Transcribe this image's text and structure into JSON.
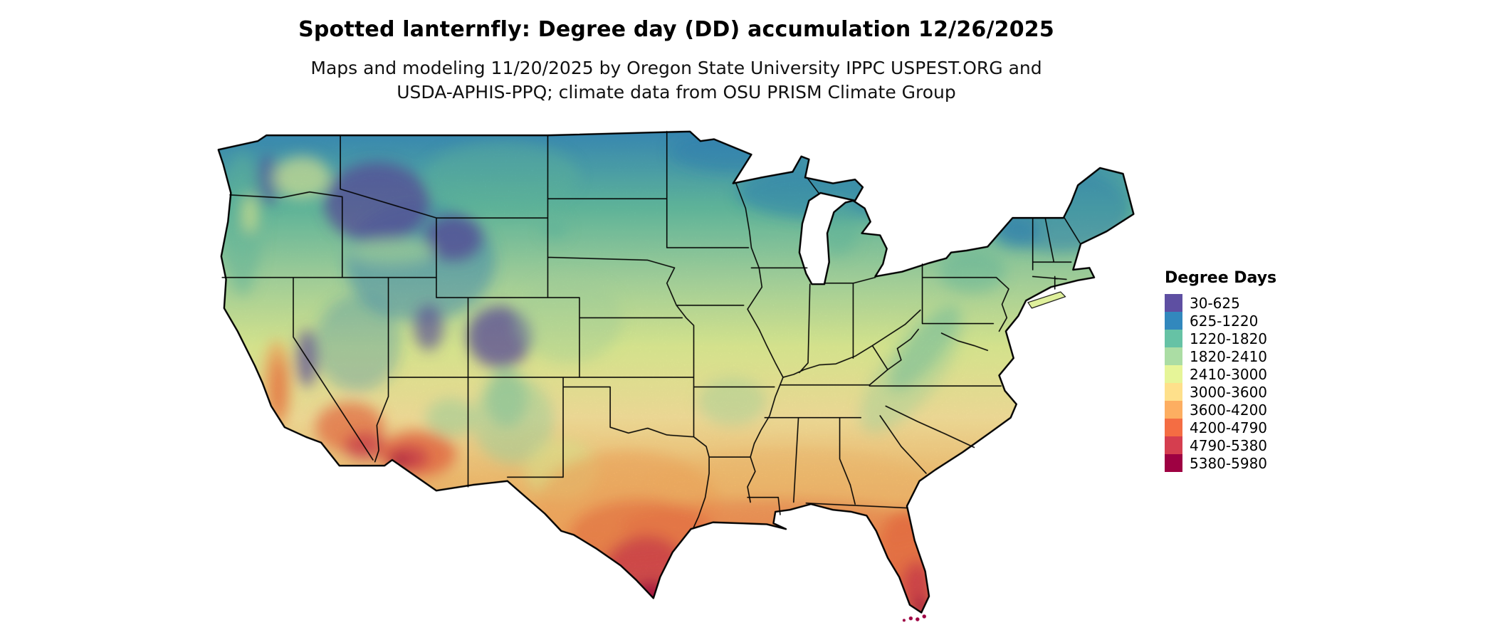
{
  "header": {
    "title": "Spotted lanternfly: Degree day (DD) accumulation 12/26/2025",
    "subtitle": {
      "lines": [
        "Maps and modeling 11/20/2025 by Oregon State University IPPC USPEST.ORG and",
        "USDA-APHIS-PPQ; climate data from OSU PRISM Climate Group"
      ]
    }
  },
  "map": {
    "name": "Conterminous United States degree-day choropleth map",
    "style": "raster heat map with state boundaries"
  },
  "legend": {
    "title": "Degree Days",
    "items": [
      {
        "label": "30-625",
        "color": "#5e4fa2"
      },
      {
        "label": "625-1220",
        "color": "#3288bd"
      },
      {
        "label": "1220-1820",
        "color": "#66c2a5"
      },
      {
        "label": "1820-2410",
        "color": "#abdda4"
      },
      {
        "label": "2410-3000",
        "color": "#e6f598"
      },
      {
        "label": "3000-3600",
        "color": "#fee08b"
      },
      {
        "label": "3600-4200",
        "color": "#fdae61"
      },
      {
        "label": "4200-4790",
        "color": "#f46d43"
      },
      {
        "label": "4790-5380",
        "color": "#d53e4f"
      },
      {
        "label": "5380-5980",
        "color": "#9e0142"
      }
    ]
  }
}
